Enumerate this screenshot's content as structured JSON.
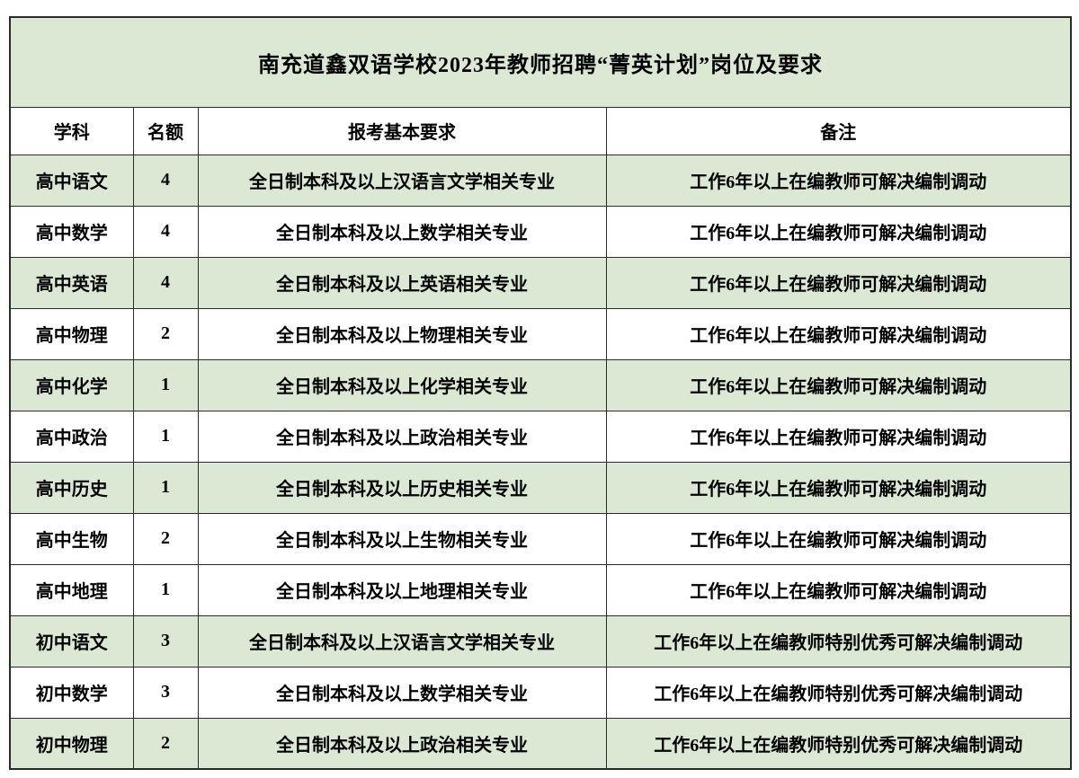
{
  "table": {
    "title": "南充道鑫双语学校2023年教师招聘“菁英计划”岗位及要求",
    "columns": [
      "学科",
      "名额",
      "报考基本要求",
      "备注"
    ],
    "rows": [
      {
        "subject": "高中语文",
        "quota": "4",
        "requirement": "全日制本科及以上汉语言文学相关专业",
        "note": "工作6年以上在编教师可解决编制调动",
        "shaded": true
      },
      {
        "subject": "高中数学",
        "quota": "4",
        "requirement": "全日制本科及以上数学相关专业",
        "note": "工作6年以上在编教师可解决编制调动",
        "shaded": false
      },
      {
        "subject": "高中英语",
        "quota": "4",
        "requirement": "全日制本科及以上英语相关专业",
        "note": "工作6年以上在编教师可解决编制调动",
        "shaded": true
      },
      {
        "subject": "高中物理",
        "quota": "2",
        "requirement": "全日制本科及以上物理相关专业",
        "note": "工作6年以上在编教师可解决编制调动",
        "shaded": false
      },
      {
        "subject": "高中化学",
        "quota": "1",
        "requirement": "全日制本科及以上化学相关专业",
        "note": "工作6年以上在编教师可解决编制调动",
        "shaded": true
      },
      {
        "subject": "高中政治",
        "quota": "1",
        "requirement": "全日制本科及以上政治相关专业",
        "note": "工作6年以上在编教师可解决编制调动",
        "shaded": false
      },
      {
        "subject": "高中历史",
        "quota": "1",
        "requirement": "全日制本科及以上历史相关专业",
        "note": "工作6年以上在编教师可解决编制调动",
        "shaded": true
      },
      {
        "subject": "高中生物",
        "quota": "2",
        "requirement": "全日制本科及以上生物相关专业",
        "note": "工作6年以上在编教师可解决编制调动",
        "shaded": false
      },
      {
        "subject": "高中地理",
        "quota": "1",
        "requirement": "全日制本科及以上地理相关专业",
        "note": "工作6年以上在编教师可解决编制调动",
        "shaded": false
      },
      {
        "subject": "初中语文",
        "quota": "3",
        "requirement": "全日制本科及以上汉语言文学相关专业",
        "note": "工作6年以上在编教师特别优秀可解决编制调动",
        "shaded": true
      },
      {
        "subject": "初中数学",
        "quota": "3",
        "requirement": "全日制本科及以上数学相关专业",
        "note": "工作6年以上在编教师特别优秀可解决编制调动",
        "shaded": false
      },
      {
        "subject": "初中物理",
        "quota": "2",
        "requirement": "全日制本科及以上政治相关专业",
        "note": "工作6年以上在编教师特别优秀可解决编制调动",
        "shaded": true
      }
    ],
    "colors": {
      "row_shade": "#dbe8d3",
      "border": "#2b2b2b",
      "text": "#000000"
    }
  }
}
